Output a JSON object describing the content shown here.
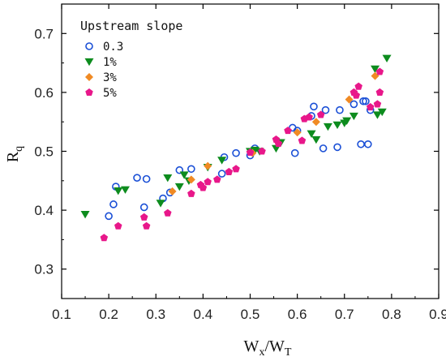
{
  "chart_data": {
    "type": "scatter",
    "title": "",
    "xlabel": "Wx/WT",
    "xlabel_main": "W",
    "xlabel_sub1": "x",
    "xlabel_mid": "/W",
    "xlabel_sub2": "T",
    "ylabel": "Rq",
    "ylabel_main": "R",
    "ylabel_sub": "q",
    "xlim": [
      0.1,
      0.9
    ],
    "ylim": [
      0.25,
      0.75
    ],
    "xticks": [
      0.1,
      0.2,
      0.3,
      0.4,
      0.5,
      0.6,
      0.7,
      0.8,
      0.9
    ],
    "yticks": [
      0.3,
      0.4,
      0.5,
      0.6,
      0.7
    ],
    "xtick_labels": [
      "0.1",
      "0.2",
      "0.3",
      "0.4",
      "0.5",
      "0.6",
      "0.7",
      "0.8",
      "0.9"
    ],
    "ytick_labels": [
      "0.3",
      "0.4",
      "0.5",
      "0.6",
      "0.7"
    ],
    "grid": false,
    "legend_title": "Upstream slope",
    "legend_position": "top-left",
    "series": [
      {
        "name": "0.3",
        "marker": "open-circle",
        "color": "#1a4fd6",
        "points": [
          [
            0.2,
            0.39
          ],
          [
            0.21,
            0.41
          ],
          [
            0.215,
            0.44
          ],
          [
            0.26,
            0.455
          ],
          [
            0.275,
            0.405
          ],
          [
            0.28,
            0.453
          ],
          [
            0.315,
            0.42
          ],
          [
            0.33,
            0.43
          ],
          [
            0.35,
            0.468
          ],
          [
            0.375,
            0.47
          ],
          [
            0.44,
            0.462
          ],
          [
            0.445,
            0.49
          ],
          [
            0.47,
            0.497
          ],
          [
            0.5,
            0.493
          ],
          [
            0.51,
            0.505
          ],
          [
            0.59,
            0.54
          ],
          [
            0.595,
            0.497
          ],
          [
            0.6,
            0.535
          ],
          [
            0.63,
            0.56
          ],
          [
            0.635,
            0.576
          ],
          [
            0.655,
            0.505
          ],
          [
            0.66,
            0.57
          ],
          [
            0.685,
            0.507
          ],
          [
            0.69,
            0.57
          ],
          [
            0.72,
            0.58
          ],
          [
            0.735,
            0.512
          ],
          [
            0.74,
            0.585
          ],
          [
            0.745,
            0.585
          ],
          [
            0.75,
            0.512
          ],
          [
            0.755,
            0.57
          ]
        ]
      },
      {
        "name": "1%",
        "marker": "down-triangle",
        "color": "#0d8c1e",
        "points": [
          [
            0.15,
            0.393
          ],
          [
            0.22,
            0.433
          ],
          [
            0.235,
            0.435
          ],
          [
            0.31,
            0.412
          ],
          [
            0.325,
            0.455
          ],
          [
            0.35,
            0.44
          ],
          [
            0.36,
            0.46
          ],
          [
            0.37,
            0.45
          ],
          [
            0.41,
            0.473
          ],
          [
            0.44,
            0.485
          ],
          [
            0.5,
            0.5
          ],
          [
            0.51,
            0.502
          ],
          [
            0.52,
            0.5
          ],
          [
            0.555,
            0.505
          ],
          [
            0.565,
            0.515
          ],
          [
            0.63,
            0.53
          ],
          [
            0.64,
            0.52
          ],
          [
            0.665,
            0.542
          ],
          [
            0.685,
            0.545
          ],
          [
            0.7,
            0.548
          ],
          [
            0.705,
            0.552
          ],
          [
            0.72,
            0.56
          ],
          [
            0.765,
            0.64
          ],
          [
            0.77,
            0.562
          ],
          [
            0.78,
            0.567
          ],
          [
            0.79,
            0.658
          ]
        ]
      },
      {
        "name": "3%",
        "marker": "diamond",
        "color": "#f08a24",
        "points": [
          [
            0.335,
            0.432
          ],
          [
            0.375,
            0.452
          ],
          [
            0.41,
            0.475
          ],
          [
            0.505,
            0.497
          ],
          [
            0.6,
            0.532
          ],
          [
            0.64,
            0.55
          ],
          [
            0.71,
            0.588
          ],
          [
            0.765,
            0.628
          ]
        ]
      },
      {
        "name": "5%",
        "marker": "pentagon",
        "color": "#e8178a",
        "points": [
          [
            0.19,
            0.353
          ],
          [
            0.22,
            0.373
          ],
          [
            0.275,
            0.388
          ],
          [
            0.28,
            0.373
          ],
          [
            0.325,
            0.395
          ],
          [
            0.375,
            0.428
          ],
          [
            0.395,
            0.443
          ],
          [
            0.4,
            0.438
          ],
          [
            0.41,
            0.448
          ],
          [
            0.43,
            0.452
          ],
          [
            0.455,
            0.465
          ],
          [
            0.47,
            0.47
          ],
          [
            0.5,
            0.498
          ],
          [
            0.525,
            0.5
          ],
          [
            0.555,
            0.52
          ],
          [
            0.56,
            0.513
          ],
          [
            0.58,
            0.535
          ],
          [
            0.61,
            0.518
          ],
          [
            0.615,
            0.555
          ],
          [
            0.625,
            0.558
          ],
          [
            0.65,
            0.562
          ],
          [
            0.72,
            0.6
          ],
          [
            0.725,
            0.595
          ],
          [
            0.73,
            0.61
          ],
          [
            0.755,
            0.575
          ],
          [
            0.77,
            0.58
          ],
          [
            0.775,
            0.635
          ],
          [
            0.775,
            0.6
          ]
        ]
      }
    ]
  }
}
